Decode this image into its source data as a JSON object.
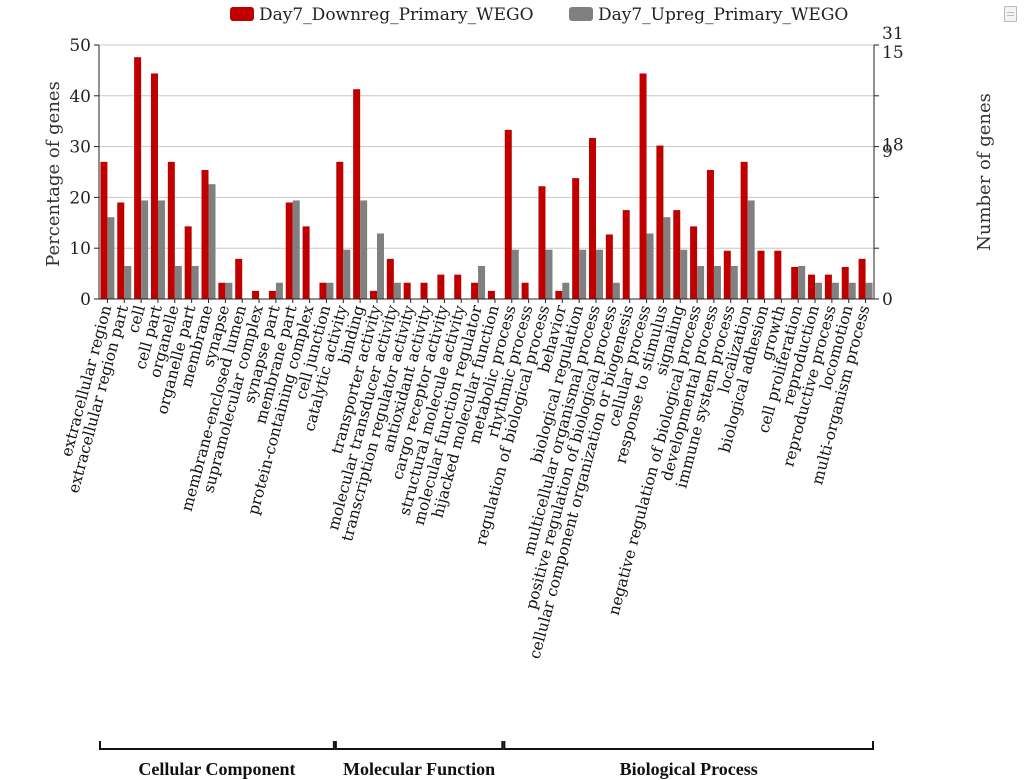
{
  "chart_data": {
    "type": "bar",
    "legend_placement": "top",
    "grid": true,
    "ylabel": "Percentage of genes",
    "y2label": "Number of genes",
    "ylim": [
      0,
      50
    ],
    "yticks": [
      "0",
      "10",
      "20",
      "30",
      "40",
      "50"
    ],
    "y2_ticks_series1": [
      "0",
      "9",
      "15"
    ],
    "y2_ticks_series2": [
      "0",
      "18",
      "31"
    ],
    "colors": {
      "downreg": "#c00000",
      "upreg": "#808080",
      "grid": "#c8c8c8"
    },
    "categories": [
      "extracellular region",
      "extracellular region part",
      "cell",
      "cell part",
      "organelle",
      "organelle part",
      "membrane",
      "synapse",
      "membrane-enclosed lumen",
      "supramolecular complex",
      "synapse part",
      "membrane part",
      "protein-containing complex",
      "cell junction",
      "catalytic activity",
      "binding",
      "transporter activity",
      "molecular transducer activity",
      "transcription regulator activity",
      "antioxidant activity",
      "cargo receptor activity",
      "structural molecule activity",
      "molecular function regulator",
      "hijacked molecular function",
      "metabolic process",
      "rhythmic process",
      "regulation of biological process",
      "behavior",
      "biological regulation",
      "multicellular organismal process",
      "positive regulation of biological process",
      "cellular component organization or biogenesis",
      "cellular process",
      "response to stimulus",
      "signaling",
      "negative regulation of biological process",
      "developmental process",
      "immune system process",
      "localization",
      "biological adhesion",
      "growth",
      "cell proliferation",
      "reproduction",
      "reproductive process",
      "locomotion",
      "multi-organism process"
    ],
    "series": [
      {
        "name": "Day7_Downreg_Primary_WEGO",
        "values": [
          27,
          19,
          47.6,
          44.4,
          27,
          14.3,
          25.4,
          3.2,
          7.9,
          1.6,
          1.6,
          19,
          14.3,
          3.2,
          27,
          41.3,
          1.6,
          7.9,
          3.2,
          3.2,
          4.8,
          4.8,
          3.2,
          1.6,
          33.3,
          3.2,
          22.2,
          1.6,
          23.8,
          31.7,
          12.7,
          17.5,
          44.4,
          30.2,
          17.5,
          14.3,
          25.4,
          9.5,
          27,
          9.5,
          9.5,
          6.3,
          4.8,
          4.8,
          6.3,
          7.9
        ]
      },
      {
        "name": "Day7_Upreg_Primary_WEGO",
        "values": [
          16.1,
          6.5,
          19.4,
          19.4,
          6.5,
          6.5,
          22.6,
          3.2,
          0,
          0,
          3.2,
          19.4,
          0,
          3.2,
          9.7,
          19.4,
          12.9,
          3.2,
          0,
          0,
          0,
          0,
          6.5,
          0,
          9.7,
          0,
          9.7,
          3.2,
          9.7,
          9.7,
          3.2,
          0,
          12.9,
          16.1,
          9.7,
          6.5,
          6.5,
          6.5,
          19.4,
          0,
          0,
          6.5,
          3.2,
          3.2,
          3.2,
          3.2
        ]
      }
    ],
    "groups": [
      {
        "label": "Cellular Component",
        "start": 0,
        "end": 13
      },
      {
        "label": "Molecular Function",
        "start": 14,
        "end": 23
      },
      {
        "label": "Biological Process",
        "start": 24,
        "end": 45
      }
    ]
  }
}
